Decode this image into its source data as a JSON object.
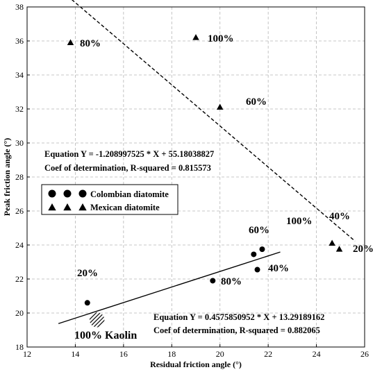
{
  "chart_data": {
    "type": "scatter",
    "xlabel": "Residual friction angle (°)",
    "ylabel": "Peak friction angle (°)",
    "xlim": [
      12,
      26
    ],
    "ylim": [
      18,
      38
    ],
    "xticks": [
      12,
      14,
      16,
      18,
      20,
      22,
      24,
      26
    ],
    "yticks": [
      18,
      20,
      22,
      24,
      26,
      28,
      30,
      32,
      34,
      36,
      38
    ],
    "grid": true,
    "legend_position": "middle-left",
    "legend": [
      {
        "marker": "circle",
        "label": "Colombian diatomite"
      },
      {
        "marker": "triangle",
        "label": "Mexican diatomite"
      }
    ],
    "series": [
      {
        "name": "Colombian diatomite",
        "marker": "circle",
        "points": [
          {
            "x": 14.5,
            "y": 20.6,
            "label": "20%"
          },
          {
            "x": 19.7,
            "y": 21.9,
            "label": "80%"
          },
          {
            "x": 21.4,
            "y": 23.45,
            "label": "60%"
          },
          {
            "x": 21.55,
            "y": 22.55,
            "label": "40%"
          },
          {
            "x": 21.75,
            "y": 23.75,
            "label": "100%"
          }
        ]
      },
      {
        "name": "Mexican diatomite",
        "marker": "triangle",
        "points": [
          {
            "x": 13.8,
            "y": 35.9,
            "label": "80%"
          },
          {
            "x": 19.0,
            "y": 36.2,
            "label": "100%"
          },
          {
            "x": 20.0,
            "y": 32.1,
            "label": "60%"
          },
          {
            "x": 24.65,
            "y": 24.1,
            "label": "40%"
          },
          {
            "x": 24.95,
            "y": 23.75,
            "label": "20%"
          }
        ]
      }
    ],
    "kaolin": {
      "x": 14.9,
      "y": 19.6,
      "label": "100% Kaolin"
    },
    "trendlines": [
      {
        "for": "Mexican diatomite",
        "style": "dashed",
        "x_range": [
          13.5,
          25.6
        ],
        "slope": -1.208997525,
        "intercept": 55.18038827,
        "equation_text": "Equation Y = -1.208997525 * X + 55.18038827",
        "r2_text": "Coef of determination, R-squared = 0.815573"
      },
      {
        "for": "Colombian diatomite",
        "style": "solid",
        "x_range": [
          13.3,
          22.5
        ],
        "slope": 0.4575850952,
        "intercept": 13.29189162,
        "equation_text": "Equation Y = 0.4575850952 * X + 13.29189162",
        "r2_text": "Coef of determination, R-squared = 0.882065"
      }
    ]
  }
}
